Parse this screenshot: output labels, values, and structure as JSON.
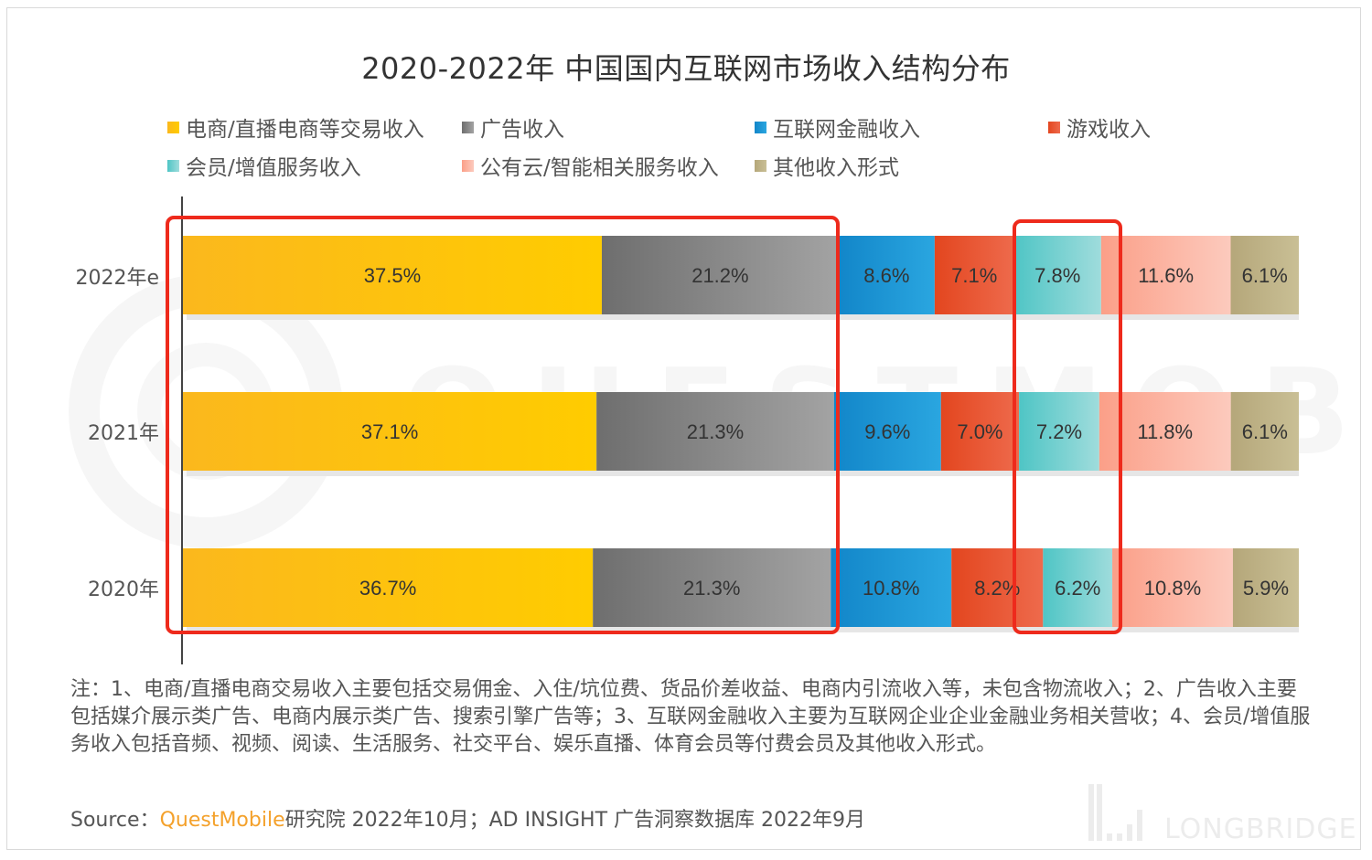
{
  "chart_data": {
    "type": "bar",
    "orientation": "horizontal",
    "stacked": true,
    "normalized": true,
    "title": "2020-2022年 中国国内互联网市场收入结构分布",
    "xlabel": "",
    "ylabel": "",
    "xlim": [
      0,
      100
    ],
    "grid": false,
    "legend_position": "top",
    "categories": [
      "2022年e",
      "2021年",
      "2020年"
    ],
    "series": [
      {
        "name": "电商/直播电商等交易收入",
        "color": "#fbb81d",
        "color_end": "#ffcc00",
        "values": [
          37.5,
          37.1,
          36.7
        ],
        "labels": [
          "37.5%",
          "37.1%",
          "36.7%"
        ]
      },
      {
        "name": "广告收入",
        "color": "#6e6e6e",
        "color_end": "#a3a3a3",
        "values": [
          21.2,
          21.3,
          21.3
        ],
        "labels": [
          "21.2%",
          "21.3%",
          "21.3%"
        ]
      },
      {
        "name": "互联网金融收入",
        "color": "#1286c9",
        "color_end": "#2aa6e0",
        "values": [
          8.6,
          9.6,
          10.8
        ],
        "labels": [
          "8.6%",
          "9.6%",
          "10.8%"
        ]
      },
      {
        "name": "游戏收入",
        "color": "#e3461f",
        "color_end": "#ee6a4c",
        "values": [
          7.1,
          7.0,
          8.2
        ],
        "labels": [
          "7.1%",
          "7.0%",
          "8.2%"
        ]
      },
      {
        "name": "会员/增值服务收入",
        "color": "#4fc5c5",
        "color_end": "#9fdcdc",
        "values": [
          7.8,
          7.2,
          6.2
        ],
        "labels": [
          "7.8%",
          "7.2%",
          "6.2%"
        ]
      },
      {
        "name": "公有云/智能相关服务收入",
        "color": "#fb9f88",
        "color_end": "#fccabd",
        "values": [
          11.6,
          11.8,
          10.8
        ],
        "labels": [
          "11.6%",
          "11.8%",
          "10.8%"
        ]
      },
      {
        "name": "其他收入形式",
        "color": "#b5a77a",
        "color_end": "#c9bf95",
        "values": [
          6.1,
          6.1,
          5.9
        ],
        "labels": [
          "6.1%",
          "6.1%",
          "5.9%"
        ]
      }
    ],
    "annotations": [
      {
        "type": "highlight-box",
        "color": "#ee2a1c",
        "covers": "电商/直播电商等交易收入 + 广告收入, all years"
      },
      {
        "type": "highlight-box",
        "color": "#ee2a1c",
        "covers": "会员/增值服务收入, all years"
      }
    ]
  },
  "note": "注：1、电商/直播电商交易收入主要包括交易佣金、入住/坑位费、货品价差收益、电商内引流收入等，未包含物流收入；2、广告收入主要包括媒介展示类广告、电商内展示类广告、搜索引擎广告等；3、互联网金融收入主要为互联网企业企业金融业务相关营收；4、会员/增值服务收入包括音频、视频、阅读、生活服务、社交平台、娱乐直播、体育会员等付费会员及其他收入形式。",
  "source": {
    "prefix": "Source：",
    "brand": "QuestMobile",
    "rest": "研究院 2022年10月；AD INSIGHT 广告洞察数据库 2022年9月"
  },
  "watermarks": {
    "center": "QUESTMOBILE",
    "corner": "LONGBRIDGE"
  }
}
